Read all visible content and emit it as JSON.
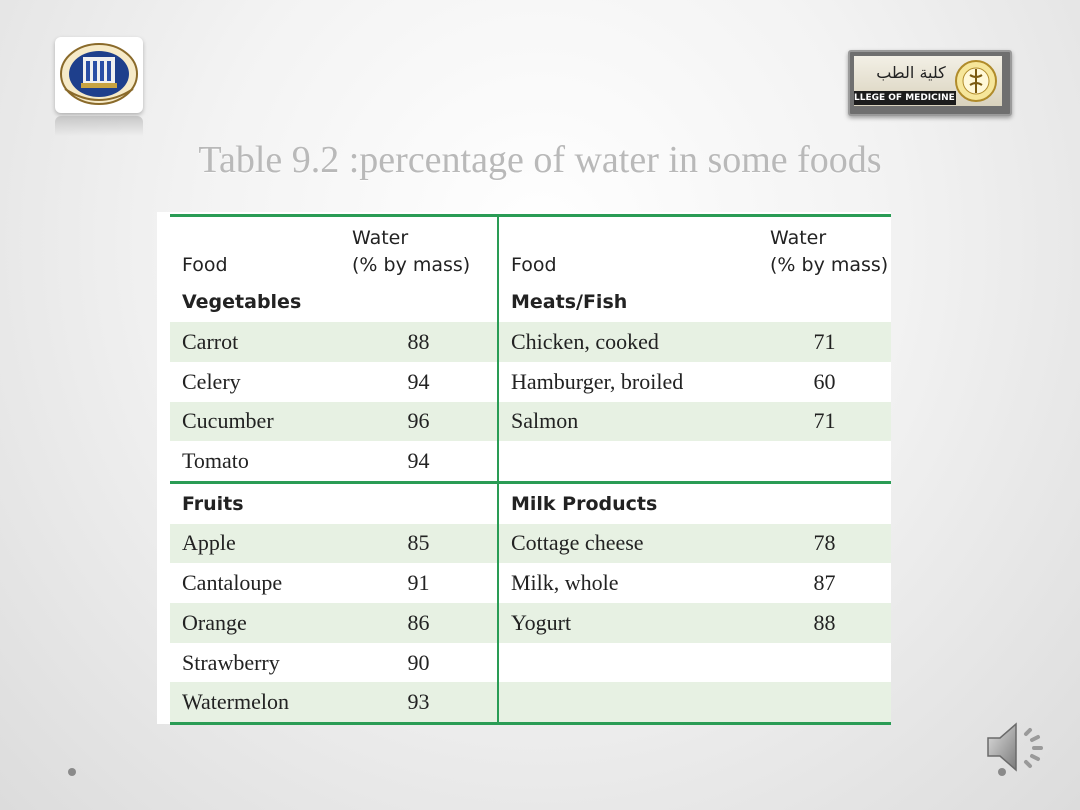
{
  "title": "Table 9.2 :percentage of water in some foods",
  "logos": {
    "right_text": "LLEGE OF MEDICINE",
    "right_arabic": "كلية الطب"
  },
  "table": {
    "headers": [
      "Food",
      "Water\n(% by mass)",
      "Food",
      "Water\n(% by mass)"
    ],
    "header_food": "Food",
    "header_water_line1": "Water",
    "header_water_line2": "(% by mass)",
    "rows": [
      {
        "left_food": "Vegetables",
        "left_val": "",
        "right_food": "Meats/Fish",
        "right_val": "",
        "section": true
      },
      {
        "left_food": "Carrot",
        "left_val": "88",
        "right_food": "Chicken, cooked",
        "right_val": "71"
      },
      {
        "left_food": "Celery",
        "left_val": "94",
        "right_food": "Hamburger, broiled",
        "right_val": "60"
      },
      {
        "left_food": "Cucumber",
        "left_val": "96",
        "right_food": "Salmon",
        "right_val": "71"
      },
      {
        "left_food": "Tomato",
        "left_val": "94",
        "right_food": "",
        "right_val": ""
      },
      {
        "left_food": "Fruits",
        "left_val": "",
        "right_food": "Milk Products",
        "right_val": "",
        "section": true
      },
      {
        "left_food": "Apple",
        "left_val": "85",
        "right_food": "Cottage cheese",
        "right_val": "78"
      },
      {
        "left_food": "Cantaloupe",
        "left_val": "91",
        "right_food": "Milk, whole",
        "right_val": "87"
      },
      {
        "left_food": "Orange",
        "left_val": "86",
        "right_food": "Yogurt",
        "right_val": "88"
      },
      {
        "left_food": "Strawberry",
        "left_val": "90",
        "right_food": "",
        "right_val": ""
      },
      {
        "left_food": "Watermelon",
        "left_val": "93",
        "right_food": "",
        "right_val": ""
      }
    ]
  },
  "colors": {
    "accent_green": "#2a9c55",
    "row_shade": "#e7f1e3",
    "title_gray": "#b9b9b9"
  },
  "icons": {
    "audio": "speaker-icon"
  }
}
